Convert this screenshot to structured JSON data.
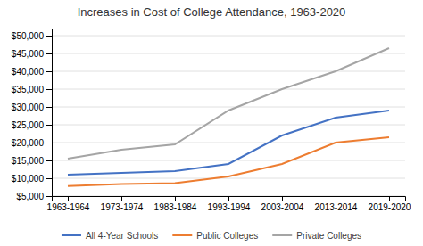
{
  "chart_data": {
    "type": "line",
    "title": "Increases in Cost of College Attendance, 1963-2020",
    "categories": [
      "1963-1964",
      "1973-1974",
      "1983-1984",
      "1993-1994",
      "2003-2004",
      "2013-2014",
      "2019-2020"
    ],
    "series": [
      {
        "name": "All 4-Year Schools",
        "color": "#4472C4",
        "values": [
          11000,
          11500,
          12000,
          14000,
          22000,
          27000,
          29000
        ]
      },
      {
        "name": "Public Colleges",
        "color": "#ED7D31",
        "values": [
          7800,
          8400,
          8600,
          10500,
          14000,
          20000,
          21500
        ]
      },
      {
        "name": "Private Colleges",
        "color": "#A5A5A5",
        "values": [
          15500,
          18000,
          19500,
          29000,
          35000,
          40000,
          46500
        ]
      }
    ],
    "ylim": [
      5000,
      52000
    ],
    "yticks": [
      {
        "value": 5000,
        "label": "$5,000"
      },
      {
        "value": 10000,
        "label": "$10,000"
      },
      {
        "value": 15000,
        "label": "$15,000"
      },
      {
        "value": 20000,
        "label": "$20,000"
      },
      {
        "value": 25000,
        "label": "$25,000"
      },
      {
        "value": 30000,
        "label": "$30,000"
      },
      {
        "value": 35000,
        "label": "$35,000"
      },
      {
        "value": 40000,
        "label": "$40,000"
      },
      {
        "value": 45000,
        "label": "$45,000"
      },
      {
        "value": 50000,
        "label": "$50,000"
      }
    ],
    "grid": true,
    "legend": "bottom"
  }
}
